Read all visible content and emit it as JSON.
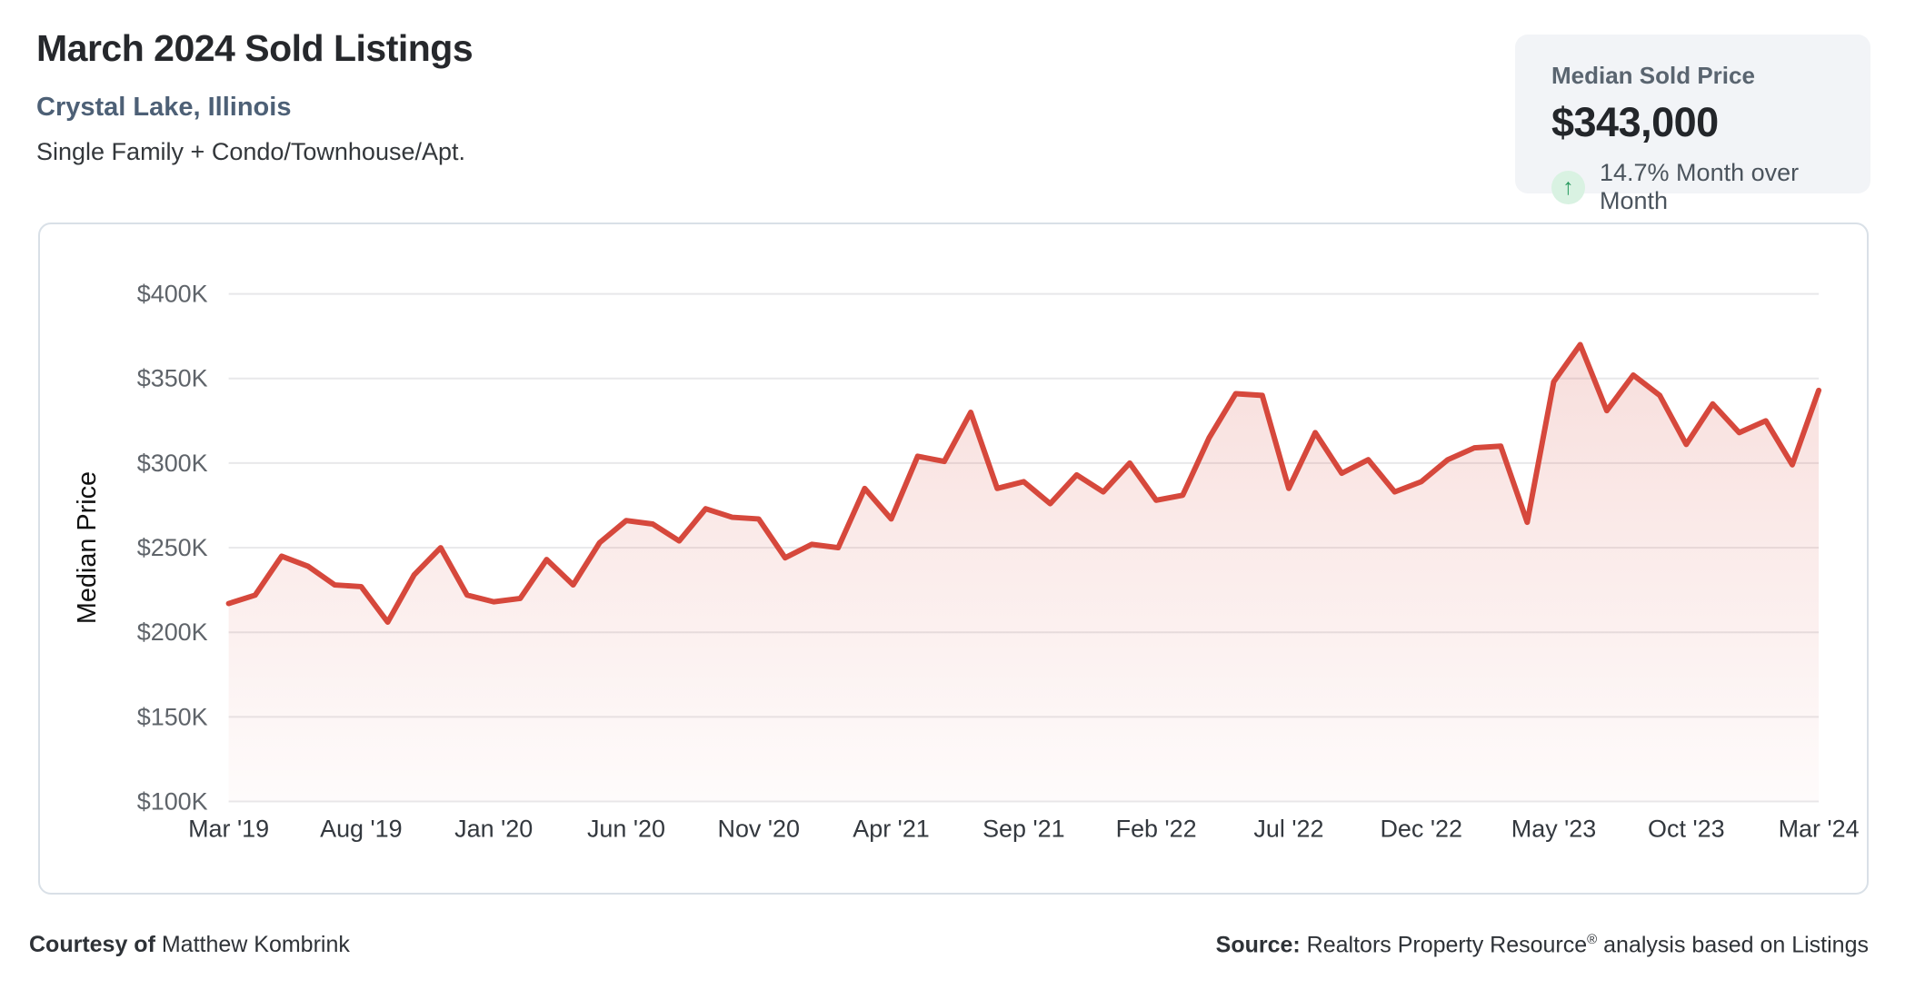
{
  "header": {
    "title": "March 2024 Sold Listings",
    "location": "Crystal Lake, Illinois",
    "property_types": "Single Family + Condo/Townhouse/Apt."
  },
  "stat_card": {
    "label": "Median Sold Price",
    "value": "$343,000",
    "arrow_glyph": "↑",
    "change_text": "14.7% Month over Month",
    "trend_color": "#2b9b61",
    "trend_bg": "#d9f2e2"
  },
  "chart_data": {
    "type": "area",
    "title": "March 2024 Sold Listings — Median Sold Price",
    "xlabel": "",
    "ylabel": "Median Price",
    "ylim": [
      100000,
      400000
    ],
    "grid": true,
    "legend": false,
    "line_color": "#d6483c",
    "y_ticks": [
      "$400K",
      "$350K",
      "$300K",
      "$250K",
      "$200K",
      "$150K",
      "$100K"
    ],
    "x_tick_every": 5,
    "x_tick_labels": [
      "Mar '19",
      "Aug '19",
      "Jan '20",
      "Jun '20",
      "Nov '20",
      "Apr '21",
      "Sep '21",
      "Feb '22",
      "Jul '22",
      "Dec '22",
      "May '23",
      "Oct '23",
      "Mar '24"
    ],
    "categories": [
      "Mar '19",
      "Apr '19",
      "May '19",
      "Jun '19",
      "Jul '19",
      "Aug '19",
      "Sep '19",
      "Oct '19",
      "Nov '19",
      "Dec '19",
      "Jan '20",
      "Feb '20",
      "Mar '20",
      "Apr '20",
      "May '20",
      "Jun '20",
      "Jul '20",
      "Aug '20",
      "Sep '20",
      "Oct '20",
      "Nov '20",
      "Dec '20",
      "Jan '21",
      "Feb '21",
      "Mar '21",
      "Apr '21",
      "May '21",
      "Jun '21",
      "Jul '21",
      "Aug '21",
      "Sep '21",
      "Oct '21",
      "Nov '21",
      "Dec '21",
      "Jan '22",
      "Feb '22",
      "Mar '22",
      "Apr '22",
      "May '22",
      "Jun '22",
      "Jul '22",
      "Aug '22",
      "Sep '22",
      "Oct '22",
      "Nov '22",
      "Dec '22",
      "Jan '23",
      "Feb '23",
      "Mar '23",
      "Apr '23",
      "May '23",
      "Jun '23",
      "Jul '23",
      "Aug '23",
      "Sep '23",
      "Oct '23",
      "Nov '23",
      "Dec '23",
      "Jan '24",
      "Feb '24",
      "Mar '24"
    ],
    "series": [
      {
        "name": "Median Sold Price",
        "values": [
          217000,
          222000,
          245000,
          239000,
          228000,
          227000,
          206000,
          234000,
          250000,
          222000,
          218000,
          220000,
          243000,
          228000,
          253000,
          266000,
          264000,
          254000,
          273000,
          268000,
          267000,
          244000,
          252000,
          250000,
          285000,
          267000,
          304000,
          301000,
          330000,
          285000,
          289000,
          276000,
          293000,
          283000,
          300000,
          278000,
          281000,
          315000,
          341000,
          340000,
          285000,
          318000,
          294000,
          302000,
          283000,
          289000,
          302000,
          309000,
          310000,
          265000,
          348000,
          370000,
          331000,
          352000,
          340000,
          311000,
          335000,
          318000,
          325000,
          299000,
          343000
        ]
      }
    ]
  },
  "footer": {
    "courtesy_label": "Courtesy of",
    "courtesy_name": " Matthew Kombrink",
    "source_label": "Source:",
    "source_name": " Realtors Property Resource",
    "source_reg": "®",
    "source_rest": " analysis based on Listings"
  }
}
